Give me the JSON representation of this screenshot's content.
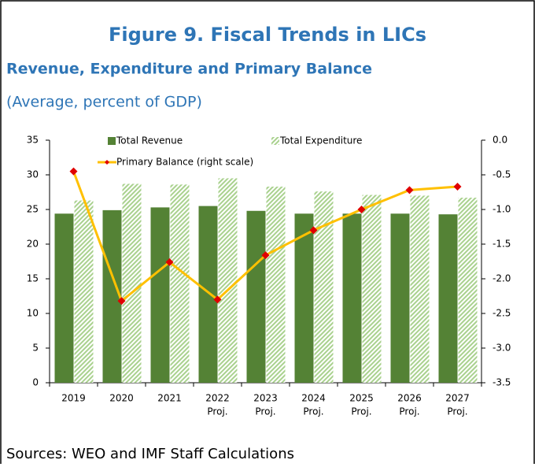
{
  "chart_data": {
    "type": "bar_line",
    "title": "Figure 9. Fiscal Trends in LICs",
    "subtitle": "Revenue, Expenditure and Primary Balance",
    "unit_note": "(Average, percent of GDP)",
    "source": "Sources: WEO and IMF Staff Calculations",
    "categories": [
      [
        "2019"
      ],
      [
        "2020"
      ],
      [
        "2021"
      ],
      [
        "2022",
        "Proj."
      ],
      [
        "2023",
        "Proj."
      ],
      [
        "2024",
        "Proj."
      ],
      [
        "2025",
        "Proj."
      ],
      [
        "2026",
        "Proj."
      ],
      [
        "2027",
        "Proj."
      ]
    ],
    "series": [
      {
        "name": "Total Revenue",
        "type": "bar",
        "color": "#548235",
        "values": [
          24.4,
          24.9,
          25.3,
          25.5,
          24.8,
          24.4,
          24.4,
          24.4,
          24.3
        ]
      },
      {
        "name": "Total Expenditure",
        "type": "bar",
        "color": "#a9d18e",
        "pattern": "hatch",
        "values": [
          26.3,
          28.7,
          28.6,
          29.5,
          28.3,
          27.6,
          27.1,
          27.0,
          26.7
        ]
      },
      {
        "name": "Primary Balance (right scale)",
        "type": "line",
        "axis": "y2",
        "color": "#ffc000",
        "marker_color": "#e00000",
        "values": [
          -0.45,
          -2.32,
          -1.76,
          -2.3,
          -1.66,
          -1.3,
          -1.0,
          -0.72,
          -0.67
        ]
      }
    ],
    "ylim": [
      0,
      35
    ],
    "yticks": [
      0,
      5,
      10,
      15,
      20,
      25,
      30,
      35
    ],
    "y2lim": [
      -3.5,
      0
    ],
    "y2ticks": [
      {
        "value": -3.5,
        "label": "-3.5"
      },
      {
        "value": -3,
        "label": "-3.0"
      },
      {
        "value": -2.5,
        "label": "-2.5"
      },
      {
        "value": -2,
        "label": "-2.0"
      },
      {
        "value": -1.5,
        "label": "-1.5"
      },
      {
        "value": -1,
        "label": "-1.0"
      },
      {
        "value": -0.5,
        "label": "-0.5"
      },
      {
        "value": 0,
        "label": "0.0"
      }
    ],
    "grid": false,
    "legend": "top"
  }
}
